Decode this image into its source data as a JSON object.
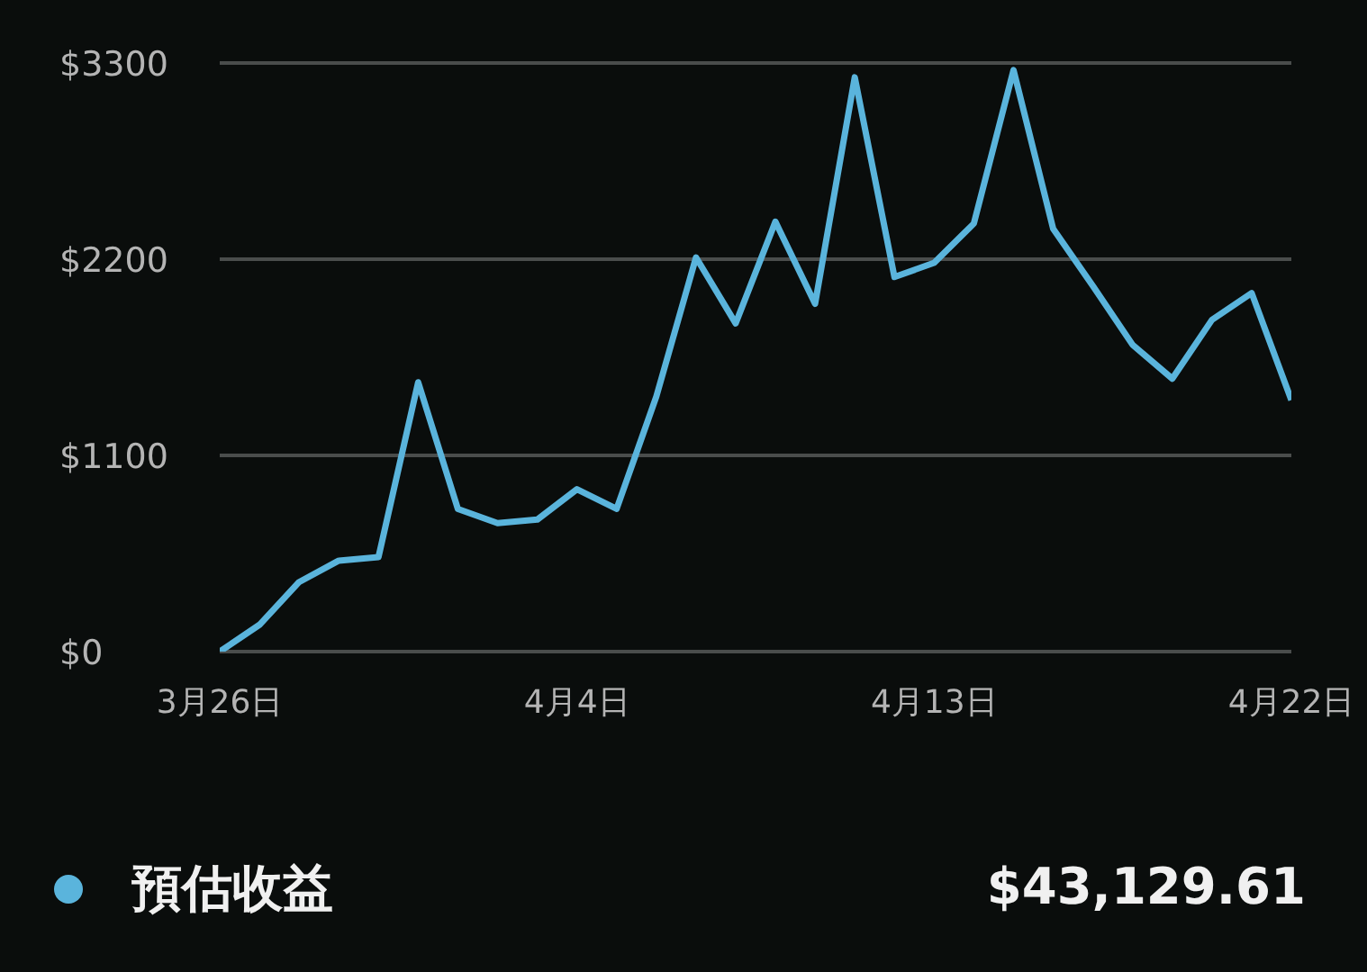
{
  "chart_data": {
    "type": "line",
    "x": [
      "--03-26",
      "--03-27",
      "--03-28",
      "--03-29",
      "--03-30",
      "--03-31",
      "--04-01",
      "--04-02",
      "--04-03",
      "--04-04",
      "--04-05",
      "--04-06",
      "--04-07",
      "--04-08",
      "--04-09",
      "--04-10",
      "--04-11",
      "--04-12",
      "--04-13",
      "--04-14",
      "--04-15",
      "--04-16",
      "--04-17",
      "--04-18",
      "--04-19",
      "--04-20",
      "--04-21",
      "--04-22"
    ],
    "series": [
      {
        "name": "預估收益",
        "color": "#5ab4dc",
        "values": [
          0,
          150,
          390,
          510,
          530,
          1510,
          800,
          720,
          740,
          910,
          800,
          1430,
          2210,
          1840,
          2410,
          1950,
          3220,
          2100,
          2180,
          2400,
          3260,
          2370,
          2050,
          1720,
          1530,
          1860,
          2010,
          1410
        ]
      }
    ],
    "xlim": [
      "--03-26",
      "--04-22"
    ],
    "xticks": [
      {
        "value": "--03-26",
        "label": "3月26日"
      },
      {
        "value": "--04-04",
        "label": "4月4日"
      },
      {
        "value": "--04-13",
        "label": "4月13日"
      },
      {
        "value": "--04-22",
        "label": "4月22日"
      }
    ],
    "ylim": [
      0,
      3300
    ],
    "yticks": [
      {
        "value": 0,
        "label": "$0"
      },
      {
        "value": 1100,
        "label": "$1100"
      },
      {
        "value": 2200,
        "label": "$2200"
      },
      {
        "value": 3300,
        "label": "$3300"
      }
    ],
    "grid": "y",
    "legend": "bottom",
    "marker": "none",
    "line_style": "solid",
    "annotations": [
      "$43,129.61"
    ]
  }
}
